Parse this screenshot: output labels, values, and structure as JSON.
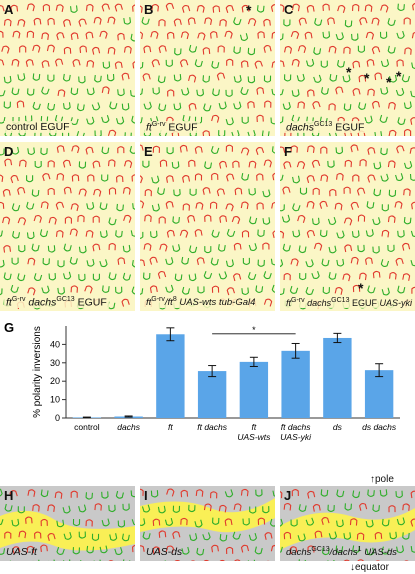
{
  "panels": [
    {
      "id": "A",
      "caption": "control EGUF",
      "seed": 11,
      "mode": "normal"
    },
    {
      "id": "B",
      "caption": "ft EGUF",
      "sup": "G-rv",
      "seed": 23,
      "mode": "mixed"
    },
    {
      "id": "C",
      "caption": "dachs EGUF",
      "sup": "GC13",
      "seed": 37,
      "mode": "mixed"
    },
    {
      "id": "D",
      "caption": "ft dachs EGUF",
      "seed": 41,
      "mode": "mixed"
    },
    {
      "id": "E",
      "caption": "ft /ft UAS-wts tub-Gal4",
      "seed": 53,
      "mode": "mixed"
    },
    {
      "id": "F",
      "caption": "ft dachs EGUF UAS-yki",
      "seed": 67,
      "mode": "mixed"
    }
  ],
  "bottom_panels": [
    {
      "id": "H",
      "caption": "UAS-ft",
      "seed": 71
    },
    {
      "id": "I",
      "caption": "UAS-ds",
      "seed": 83
    },
    {
      "id": "J",
      "caption": "dachs /dachs UAS-ds",
      "seed": 97
    }
  ],
  "orientation": {
    "pole": "pole",
    "equator": "equator"
  },
  "chart_data": {
    "type": "bar",
    "panel_label": "G",
    "ylabel": "% polarity inversions",
    "categories": [
      "control",
      "dachs",
      "ft",
      "ft dachs",
      "ft UAS-wts",
      "ft dachs UAS-yki",
      "ds",
      "ds dachs"
    ],
    "values": [
      0.3,
      0.8,
      45.5,
      25.5,
      30.5,
      36.5,
      43.5,
      26
    ],
    "errors": [
      0.2,
      0.3,
      3.5,
      3,
      2.5,
      4,
      2.5,
      3.5
    ],
    "ylim": [
      0,
      50
    ],
    "yticks": [
      0,
      10,
      20,
      30,
      40
    ],
    "bar_color": "#5aa5e8",
    "significance": [
      {
        "from": 2,
        "to": 3,
        "label": "***"
      },
      {
        "from": 2,
        "to": 4,
        "label": "**"
      },
      {
        "from": 3,
        "to": 5,
        "label": "*"
      },
      {
        "from": 6,
        "to": 7,
        "label": "***"
      }
    ]
  },
  "colors": {
    "red": "#e03a2e",
    "green": "#2fae2a",
    "yellow": "#f9ef56",
    "gray": "#c9c9c9",
    "panel_bg": "#fbf6c6"
  }
}
